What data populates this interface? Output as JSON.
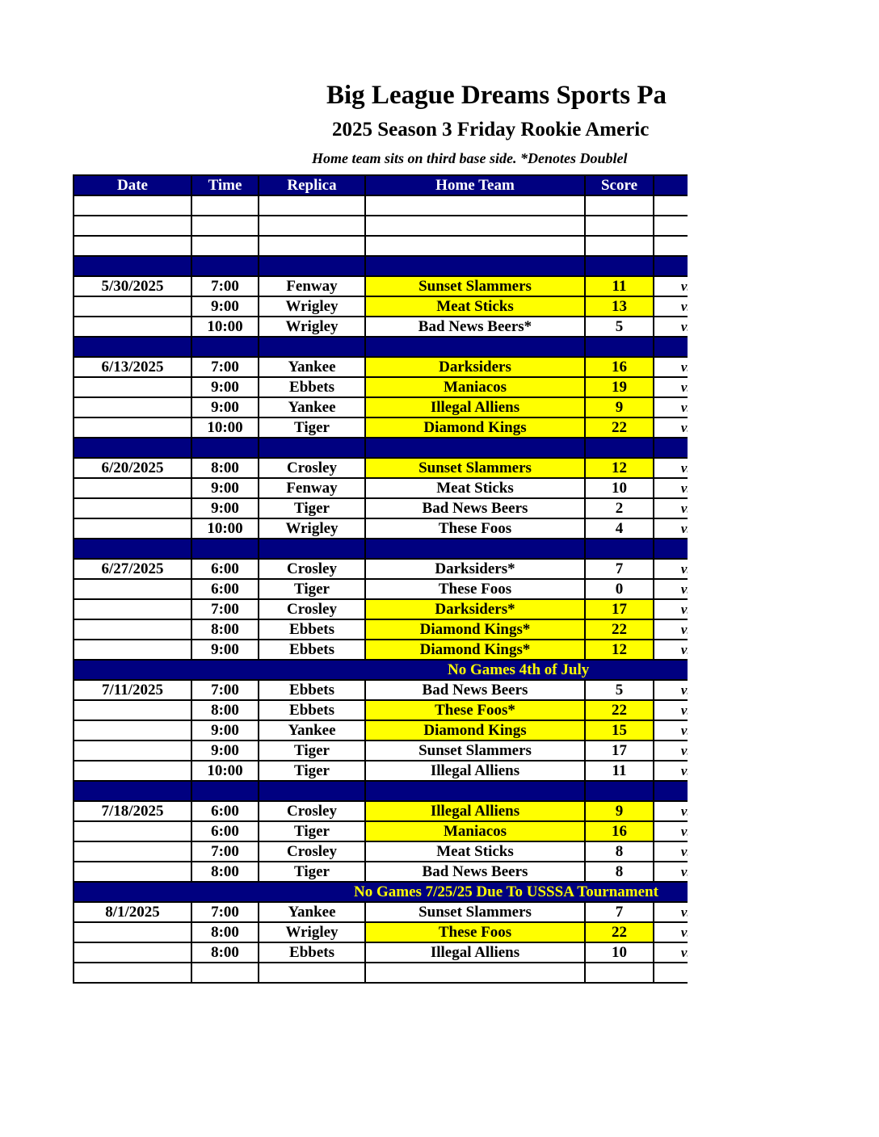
{
  "title": "Big League Dreams Sports Pa",
  "subtitle": "2025 Season 3 Friday Rookie Americ",
  "note": "Home team sits on third base side.  *Denotes Doublel",
  "columns": [
    "Date",
    "Time",
    "Replica",
    "Home Team",
    "Score",
    ""
  ],
  "colors": {
    "header_bg": "#000080",
    "highlight": "#ffff00",
    "banner_text": "#ffff00"
  },
  "vs_label": "vs",
  "rows": [
    {
      "type": "blank"
    },
    {
      "type": "blank"
    },
    {
      "type": "blank"
    },
    {
      "type": "sep"
    },
    {
      "type": "game",
      "date": "5/30/2025",
      "time": "7:00",
      "replica": "Fenway",
      "team": "Sunset Slammers",
      "score": "11",
      "hl": true
    },
    {
      "type": "game",
      "date": "",
      "time": "9:00",
      "replica": "Wrigley",
      "team": "Meat Sticks",
      "score": "13",
      "hl": true
    },
    {
      "type": "game",
      "date": "",
      "time": "10:00",
      "replica": "Wrigley",
      "team": "Bad News Beers*",
      "score": "5",
      "hl": false
    },
    {
      "type": "sep"
    },
    {
      "type": "game",
      "date": "6/13/2025",
      "time": "7:00",
      "replica": "Yankee",
      "team": "Darksiders",
      "score": "16",
      "hl": true
    },
    {
      "type": "game",
      "date": "",
      "time": "9:00",
      "replica": "Ebbets",
      "team": "Maniacos",
      "score": "19",
      "hl": true
    },
    {
      "type": "game",
      "date": "",
      "time": "9:00",
      "replica": "Yankee",
      "team": "Illegal Alliens",
      "score": "9",
      "hl": true
    },
    {
      "type": "game",
      "date": "",
      "time": "10:00",
      "replica": "Tiger",
      "team": "Diamond Kings",
      "score": "22",
      "hl": true
    },
    {
      "type": "sep"
    },
    {
      "type": "game",
      "date": "6/20/2025",
      "time": "8:00",
      "replica": "Crosley",
      "team": "Sunset Slammers",
      "score": "12",
      "hl": true
    },
    {
      "type": "game",
      "date": "",
      "time": "9:00",
      "replica": "Fenway",
      "team": "Meat Sticks",
      "score": "10",
      "hl": false
    },
    {
      "type": "game",
      "date": "",
      "time": "9:00",
      "replica": "Tiger",
      "team": "Bad News Beers",
      "score": "2",
      "hl": false
    },
    {
      "type": "game",
      "date": "",
      "time": "10:00",
      "replica": "Wrigley",
      "team": "These Foos",
      "score": "4",
      "hl": false
    },
    {
      "type": "sep"
    },
    {
      "type": "game",
      "date": "6/27/2025",
      "time": "6:00",
      "replica": "Crosley",
      "team": "Darksiders*",
      "score": "7",
      "hl": false
    },
    {
      "type": "game",
      "date": "",
      "time": "6:00",
      "replica": "Tiger",
      "team": "These Foos",
      "score": "0",
      "hl": false
    },
    {
      "type": "game",
      "date": "",
      "time": "7:00",
      "replica": "Crosley",
      "team": "Darksiders*",
      "score": "17",
      "hl": true
    },
    {
      "type": "game",
      "date": "",
      "time": "8:00",
      "replica": "Ebbets",
      "team": "Diamond Kings*",
      "score": "22",
      "hl": true
    },
    {
      "type": "game",
      "date": "",
      "time": "9:00",
      "replica": "Ebbets",
      "team": "Diamond Kings*",
      "score": "12",
      "hl": true
    },
    {
      "type": "banner",
      "text": "No Games 4th of July",
      "indent": 462
    },
    {
      "type": "game",
      "date": "7/11/2025",
      "time": "7:00",
      "replica": "Ebbets",
      "team": "Bad News Beers",
      "score": "5",
      "hl": false
    },
    {
      "type": "game",
      "date": "",
      "time": "8:00",
      "replica": "Ebbets",
      "team": "These Foos*",
      "score": "22",
      "hl": true
    },
    {
      "type": "game",
      "date": "",
      "time": "9:00",
      "replica": "Yankee",
      "team": "Diamond Kings",
      "score": "15",
      "hl": true
    },
    {
      "type": "game",
      "date": "",
      "time": "9:00",
      "replica": "Tiger",
      "team": "Sunset Slammers",
      "score": "17",
      "hl": false
    },
    {
      "type": "game",
      "date": "",
      "time": "10:00",
      "replica": "Tiger",
      "team": "Illegal Alliens",
      "score": "11",
      "hl": false
    },
    {
      "type": "sep"
    },
    {
      "type": "game",
      "date": "7/18/2025",
      "time": "6:00",
      "replica": "Crosley",
      "team": "Illegal Alliens",
      "score": "9",
      "hl": true
    },
    {
      "type": "game",
      "date": "",
      "time": "6:00",
      "replica": "Tiger",
      "team": "Maniacos",
      "score": "16",
      "hl": true
    },
    {
      "type": "game",
      "date": "",
      "time": "7:00",
      "replica": "Crosley",
      "team": "Meat Sticks",
      "score": "8",
      "hl": false
    },
    {
      "type": "game",
      "date": "",
      "time": "8:00",
      "replica": "Tiger",
      "team": "Bad News Beers",
      "score": "8",
      "hl": false
    },
    {
      "type": "banner",
      "text": "No Games 7/25/25 Due To USSSA Tournament",
      "indent": 346
    },
    {
      "type": "game",
      "date": "8/1/2025",
      "time": "7:00",
      "replica": "Yankee",
      "team": "Sunset Slammers",
      "score": "7",
      "hl": false
    },
    {
      "type": "game",
      "date": "",
      "time": "8:00",
      "replica": "Wrigley",
      "team": "These Foos",
      "score": "22",
      "hl": true
    },
    {
      "type": "game",
      "date": "",
      "time": "8:00",
      "replica": "Ebbets",
      "team": "Illegal Alliens",
      "score": "10",
      "hl": false
    },
    {
      "type": "blank"
    }
  ]
}
